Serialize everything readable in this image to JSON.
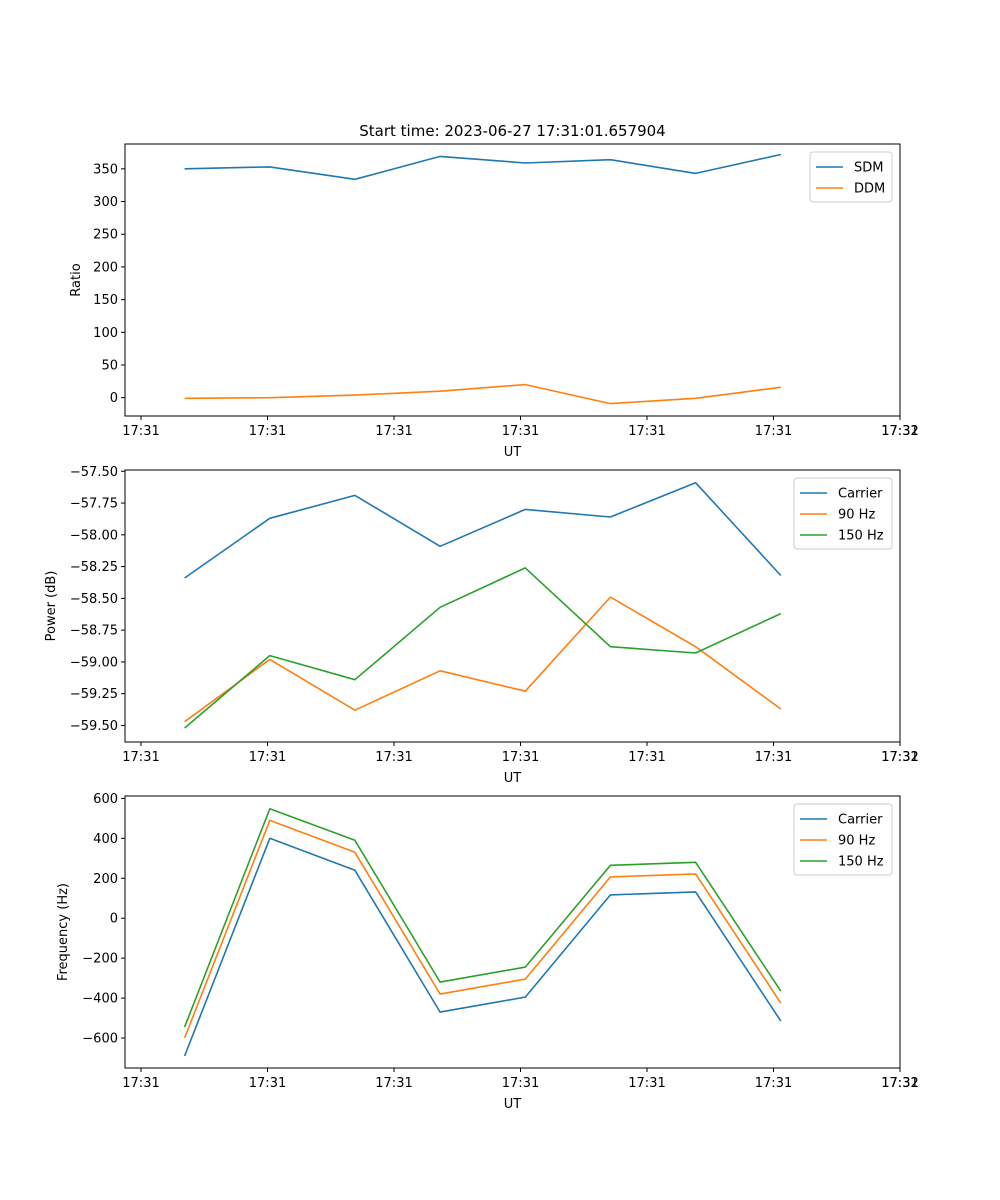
{
  "figure": {
    "title": "Start time: 2023-06-27 17:31:01.657904"
  },
  "chart_data": [
    {
      "type": "line",
      "xlabel": "UT",
      "ylabel": "Ratio",
      "xticks": [
        "17:31",
        "17:31",
        "17:31",
        "17:31",
        "17:31",
        "17:31",
        "17:31"
      ],
      "xtick_end": "17:32",
      "x": [
        1,
        2,
        3,
        4,
        5,
        6,
        7,
        8
      ],
      "xlim": [
        0.3,
        9.4
      ],
      "ylim": [
        -28,
        388
      ],
      "yticks": [
        0,
        50,
        100,
        150,
        200,
        250,
        300,
        350
      ],
      "legend": "top-right",
      "grid": false,
      "series": [
        {
          "name": "SDM",
          "color": "#1f77b4",
          "values": [
            350,
            353,
            334,
            369,
            359,
            364,
            343,
            372
          ]
        },
        {
          "name": "DDM",
          "color": "#ff7f0e",
          "values": [
            -1,
            0,
            4,
            10,
            20,
            -9,
            -1,
            16
          ]
        }
      ]
    },
    {
      "type": "line",
      "xlabel": "UT",
      "ylabel": "Power (dB)",
      "xticks": [
        "17:31",
        "17:31",
        "17:31",
        "17:31",
        "17:31",
        "17:31",
        "17:31"
      ],
      "xtick_end": "17:32",
      "x": [
        1,
        2,
        3,
        4,
        5,
        6,
        7,
        8
      ],
      "xlim": [
        0.3,
        9.4
      ],
      "ylim": [
        -59.63,
        -57.49
      ],
      "yticks": [
        -59.5,
        -59.25,
        -59.0,
        -58.75,
        -58.5,
        -58.25,
        -58.0,
        -57.75,
        -57.5
      ],
      "ytick_labels": [
        "−59.50",
        "−59.25",
        "−59.00",
        "−58.75",
        "−58.50",
        "−58.25",
        "−58.00",
        "−57.75",
        "−57.50"
      ],
      "legend": "top-right",
      "grid": false,
      "series": [
        {
          "name": "Carrier",
          "color": "#1f77b4",
          "values": [
            -58.34,
            -57.87,
            -57.69,
            -58.09,
            -57.8,
            -57.86,
            -57.59,
            -58.32
          ]
        },
        {
          "name": "90 Hz",
          "color": "#ff7f0e",
          "values": [
            -59.47,
            -58.98,
            -59.38,
            -59.07,
            -59.23,
            -58.49,
            -58.88,
            -59.37
          ]
        },
        {
          "name": "150 Hz",
          "color": "#2ca02c",
          "values": [
            -59.52,
            -58.95,
            -59.14,
            -58.57,
            -58.26,
            -58.88,
            -58.93,
            -58.62
          ]
        }
      ]
    },
    {
      "type": "line",
      "xlabel": "UT",
      "ylabel": "Frequency (Hz)",
      "xticks": [
        "17:31",
        "17:31",
        "17:31",
        "17:31",
        "17:31",
        "17:31",
        "17:31"
      ],
      "xtick_end": "17:32",
      "x": [
        1,
        2,
        3,
        4,
        5,
        6,
        7,
        8
      ],
      "xlim": [
        0.3,
        9.4
      ],
      "ylim": [
        -750,
        612
      ],
      "yticks": [
        -600,
        -400,
        -200,
        0,
        200,
        400,
        600
      ],
      "ytick_labels": [
        "−600",
        "−400",
        "−200",
        "0",
        "200",
        "400",
        "600"
      ],
      "legend": "top-right",
      "grid": false,
      "series": [
        {
          "name": "Carrier",
          "color": "#1f77b4",
          "values": [
            -690,
            400,
            240,
            -470,
            -395,
            117,
            132,
            -515
          ]
        },
        {
          "name": "90 Hz",
          "color": "#ff7f0e",
          "values": [
            -600,
            490,
            330,
            -380,
            -305,
            207,
            222,
            -425
          ]
        },
        {
          "name": "150 Hz",
          "color": "#2ca02c",
          "values": [
            -545,
            548,
            390,
            -320,
            -245,
            265,
            280,
            -365
          ]
        }
      ]
    }
  ]
}
